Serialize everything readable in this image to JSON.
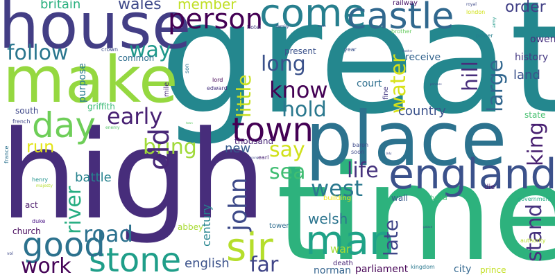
{
  "words": [
    {
      "text": "great",
      "color": "#24878e"
    },
    {
      "text": "time",
      "color": "#2db27d"
    },
    {
      "text": "high",
      "color": "#472d7b"
    },
    {
      "text": "house",
      "color": "#433e85"
    },
    {
      "text": "make",
      "color": "#95d840"
    },
    {
      "text": "place",
      "color": "#2c728e"
    },
    {
      "text": "england",
      "color": "#3b518b"
    },
    {
      "text": "come",
      "color": "#277f8e"
    },
    {
      "text": "castle",
      "color": "#31688e"
    },
    {
      "text": "person",
      "color": "#440154"
    },
    {
      "text": "day",
      "color": "#6ece58"
    },
    {
      "text": "man",
      "color": "#1fa287"
    },
    {
      "text": "stone",
      "color": "#1f9e89"
    },
    {
      "text": "town",
      "color": "#440154"
    },
    {
      "text": "good",
      "color": "#482878"
    },
    {
      "text": "old",
      "color": "#2c728e"
    },
    {
      "text": "sir",
      "color": "#b5de2b"
    },
    {
      "text": "john",
      "color": "#3e4a89"
    },
    {
      "text": "river",
      "color": "#26ad81"
    },
    {
      "text": "west",
      "color": "#2a788e"
    },
    {
      "text": "life",
      "color": "#46337e"
    },
    {
      "text": "know",
      "color": "#440154"
    },
    {
      "text": "hold",
      "color": "#2a788e"
    },
    {
      "text": "long",
      "color": "#3b528b"
    },
    {
      "text": "little",
      "color": "#c8e020"
    },
    {
      "text": "early",
      "color": "#482173"
    },
    {
      "text": "follow",
      "color": "#2a768e"
    },
    {
      "text": "water",
      "color": "#d8e219"
    },
    {
      "text": "king",
      "color": "#482071"
    },
    {
      "text": "stand",
      "color": "#46327e"
    },
    {
      "text": "hill",
      "color": "#472d7b"
    },
    {
      "text": "large",
      "color": "#31668e"
    },
    {
      "text": "way",
      "color": "#1f988b"
    },
    {
      "text": "bring",
      "color": "#a0da39"
    },
    {
      "text": "say",
      "color": "#d0e11c"
    },
    {
      "text": "sea",
      "color": "#40bd72"
    },
    {
      "text": "late",
      "color": "#404688"
    },
    {
      "text": "road",
      "color": "#2c718e"
    },
    {
      "text": "work",
      "color": "#450457"
    },
    {
      "text": "far",
      "color": "#404588"
    },
    {
      "text": "welsh",
      "color": "#2b748e"
    },
    {
      "text": "run",
      "color": "#e2e418"
    },
    {
      "text": "order",
      "color": "#424086"
    },
    {
      "text": "member",
      "color": "#c0df25"
    },
    {
      "text": "wales",
      "color": "#3e4989"
    },
    {
      "text": "britain",
      "color": "#2ab07f"
    },
    {
      "text": "country",
      "color": "#3b528b"
    },
    {
      "text": "english",
      "color": "#3b528b"
    },
    {
      "text": "century",
      "color": "#25848e"
    },
    {
      "text": "battle",
      "color": "#26828e"
    },
    {
      "text": "new",
      "color": "#375b8d"
    },
    {
      "text": "war",
      "color": "#a5db36"
    },
    {
      "text": "court",
      "color": "#2e6f8e"
    },
    {
      "text": "receive",
      "color": "#33638d"
    },
    {
      "text": "land",
      "color": "#3b528b"
    },
    {
      "text": "history",
      "color": "#453882"
    },
    {
      "text": "owen",
      "color": "#46307e"
    },
    {
      "text": "present",
      "color": "#3b528b"
    },
    {
      "text": "thousand",
      "color": "#482677"
    },
    {
      "text": "purpose",
      "color": "#297b8e"
    },
    {
      "text": "common",
      "color": "#2e6e8e"
    },
    {
      "text": "south",
      "color": "#3f4889"
    },
    {
      "text": "griffith",
      "color": "#3aba76"
    },
    {
      "text": "parliament",
      "color": "#440154"
    },
    {
      "text": "norman",
      "color": "#33638d"
    },
    {
      "text": "city",
      "color": "#31668e"
    },
    {
      "text": "prince",
      "color": "#c2df23"
    },
    {
      "text": "railway",
      "color": "#481668"
    },
    {
      "text": "act",
      "color": "#481769"
    },
    {
      "text": "church",
      "color": "#46085c"
    },
    {
      "text": "tower",
      "color": "#2f6c8e"
    },
    {
      "text": "abbey",
      "color": "#a8db34"
    },
    {
      "text": "state",
      "color": "#46c06f"
    },
    {
      "text": "building",
      "color": "#f1e51d"
    },
    {
      "text": "wall",
      "color": "#38598c"
    },
    {
      "text": "build",
      "color": "#3fbc73"
    },
    {
      "text": "die",
      "color": "#481a6c"
    },
    {
      "text": "death",
      "color": "#482475"
    },
    {
      "text": "kingdom",
      "color": "#2a788e"
    },
    {
      "text": "government",
      "color": "#24aa83"
    },
    {
      "text": "authority",
      "color": "#b8de29"
    },
    {
      "text": "duke",
      "color": "#4a1486"
    },
    {
      "text": "mile",
      "color": "#482979"
    },
    {
      "text": "edward",
      "color": "#46327e"
    },
    {
      "text": "lord",
      "color": "#440154"
    },
    {
      "text": "son",
      "color": "#2d718e"
    },
    {
      "text": "hotel",
      "color": "#44397f"
    },
    {
      "text": "crown",
      "color": "#3d4d8a"
    },
    {
      "text": "fine",
      "color": "#443a83"
    },
    {
      "text": "earl",
      "color": "#482475"
    },
    {
      "text": "soon",
      "color": "#3e4a89"
    },
    {
      "text": "baron",
      "color": "#3e4a89"
    },
    {
      "text": "year",
      "color": "#3b528b"
    },
    {
      "text": "brother",
      "color": "#65cb5e"
    },
    {
      "text": "london",
      "color": "#d2e21b"
    },
    {
      "text": "power",
      "color": "#277f8e"
    },
    {
      "text": "family",
      "color": "#3e4a89"
    },
    {
      "text": "royal",
      "color": "#3e4a89"
    },
    {
      "text": "french",
      "color": "#404688"
    },
    {
      "text": "enemy",
      "color": "#54c568"
    },
    {
      "text": "france",
      "color": "#2c728e"
    },
    {
      "text": "henry",
      "color": "#20928c"
    },
    {
      "text": "majesty",
      "color": "#b6de2b"
    },
    {
      "text": "vol",
      "color": "#3e4a89"
    },
    {
      "text": "army",
      "color": "#1f9a8a"
    },
    {
      "text": "princess",
      "color": "#3e4a89"
    },
    {
      "text": "lady",
      "color": "#3e4a89"
    },
    {
      "text": "young",
      "color": "#3e4a89"
    },
    {
      "text": "mother",
      "color": "#3e4a89"
    },
    {
      "text": "castle",
      "color": "#3e4a89"
    },
    {
      "text": "town",
      "color": "#5ec962"
    },
    {
      "text": "palace",
      "color": "#3e4a89"
    }
  ]
}
